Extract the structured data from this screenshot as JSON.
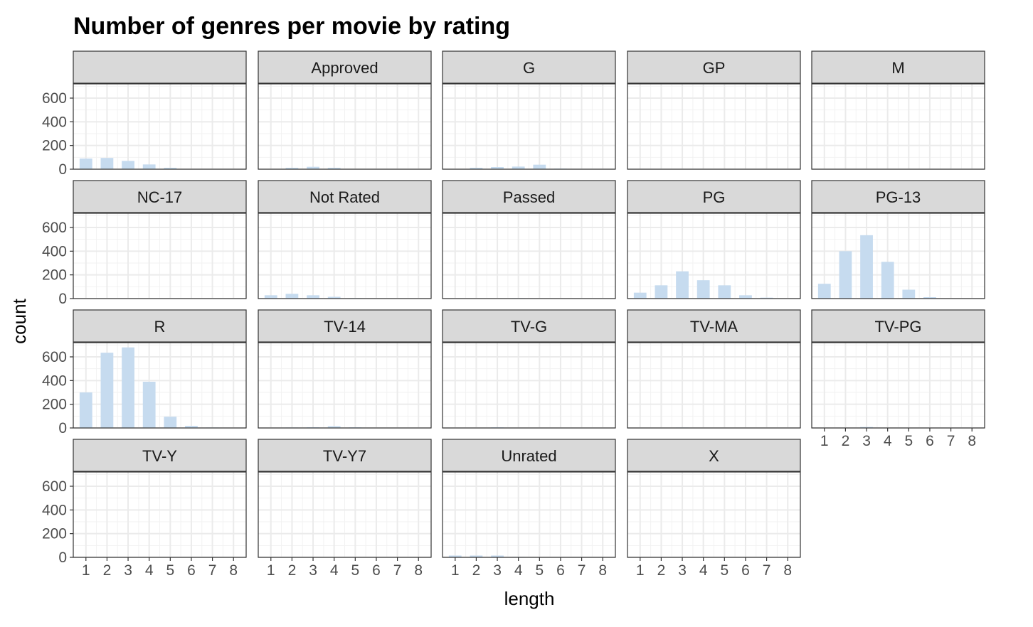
{
  "chart_data": {
    "type": "bar",
    "title": "Number of genres per movie by rating",
    "xlabel": "length",
    "ylabel": "count",
    "x": [
      1,
      2,
      3,
      4,
      5,
      6,
      7,
      8
    ],
    "ylim": [
      0,
      720
    ],
    "yticks": [
      0,
      200,
      400,
      600
    ],
    "xticks": [
      1,
      2,
      3,
      4,
      5,
      6,
      7,
      8
    ],
    "bar_color": "#c6dbef",
    "grid": true,
    "facets": [
      {
        "name": "",
        "values": [
          90,
          95,
          70,
          40,
          12,
          2,
          0,
          0
        ]
      },
      {
        "name": "Approved",
        "values": [
          3,
          12,
          20,
          12,
          3,
          0,
          0,
          0
        ]
      },
      {
        "name": "G",
        "values": [
          2,
          12,
          18,
          22,
          38,
          5,
          1,
          0
        ]
      },
      {
        "name": "GP",
        "values": [
          0,
          1,
          2,
          1,
          0,
          0,
          0,
          0
        ]
      },
      {
        "name": "M",
        "values": [
          0,
          1,
          2,
          1,
          0,
          0,
          0,
          0
        ]
      },
      {
        "name": "NC-17",
        "values": [
          1,
          3,
          3,
          2,
          1,
          0,
          0,
          0
        ]
      },
      {
        "name": "Not Rated",
        "values": [
          28,
          40,
          28,
          15,
          4,
          1,
          0,
          0
        ]
      },
      {
        "name": "Passed",
        "values": [
          1,
          2,
          3,
          4,
          2,
          1,
          0,
          0
        ]
      },
      {
        "name": "PG",
        "values": [
          50,
          112,
          230,
          155,
          112,
          28,
          8,
          0
        ]
      },
      {
        "name": "PG-13",
        "values": [
          125,
          400,
          535,
          310,
          75,
          12,
          2,
          0
        ]
      },
      {
        "name": "R",
        "values": [
          300,
          635,
          680,
          390,
          95,
          18,
          4,
          1
        ]
      },
      {
        "name": "TV-14",
        "values": [
          2,
          4,
          6,
          15,
          5,
          1,
          0,
          0
        ]
      },
      {
        "name": "TV-G",
        "values": [
          1,
          2,
          5,
          2,
          1,
          2,
          0,
          0
        ]
      },
      {
        "name": "TV-MA",
        "values": [
          2,
          3,
          4,
          2,
          3,
          2,
          0,
          0
        ]
      },
      {
        "name": "TV-PG",
        "values": [
          2,
          3,
          8,
          3,
          1,
          1,
          0,
          0
        ]
      },
      {
        "name": "TV-Y",
        "values": [
          1,
          1,
          1,
          1,
          0,
          0,
          0,
          0
        ]
      },
      {
        "name": "TV-Y7",
        "values": [
          1,
          1,
          1,
          1,
          0,
          0,
          0,
          0
        ]
      },
      {
        "name": "Unrated",
        "values": [
          15,
          15,
          15,
          4,
          1,
          0,
          0,
          0
        ]
      },
      {
        "name": "X",
        "values": [
          2,
          3,
          2,
          3,
          1,
          0,
          0,
          0
        ]
      }
    ]
  }
}
